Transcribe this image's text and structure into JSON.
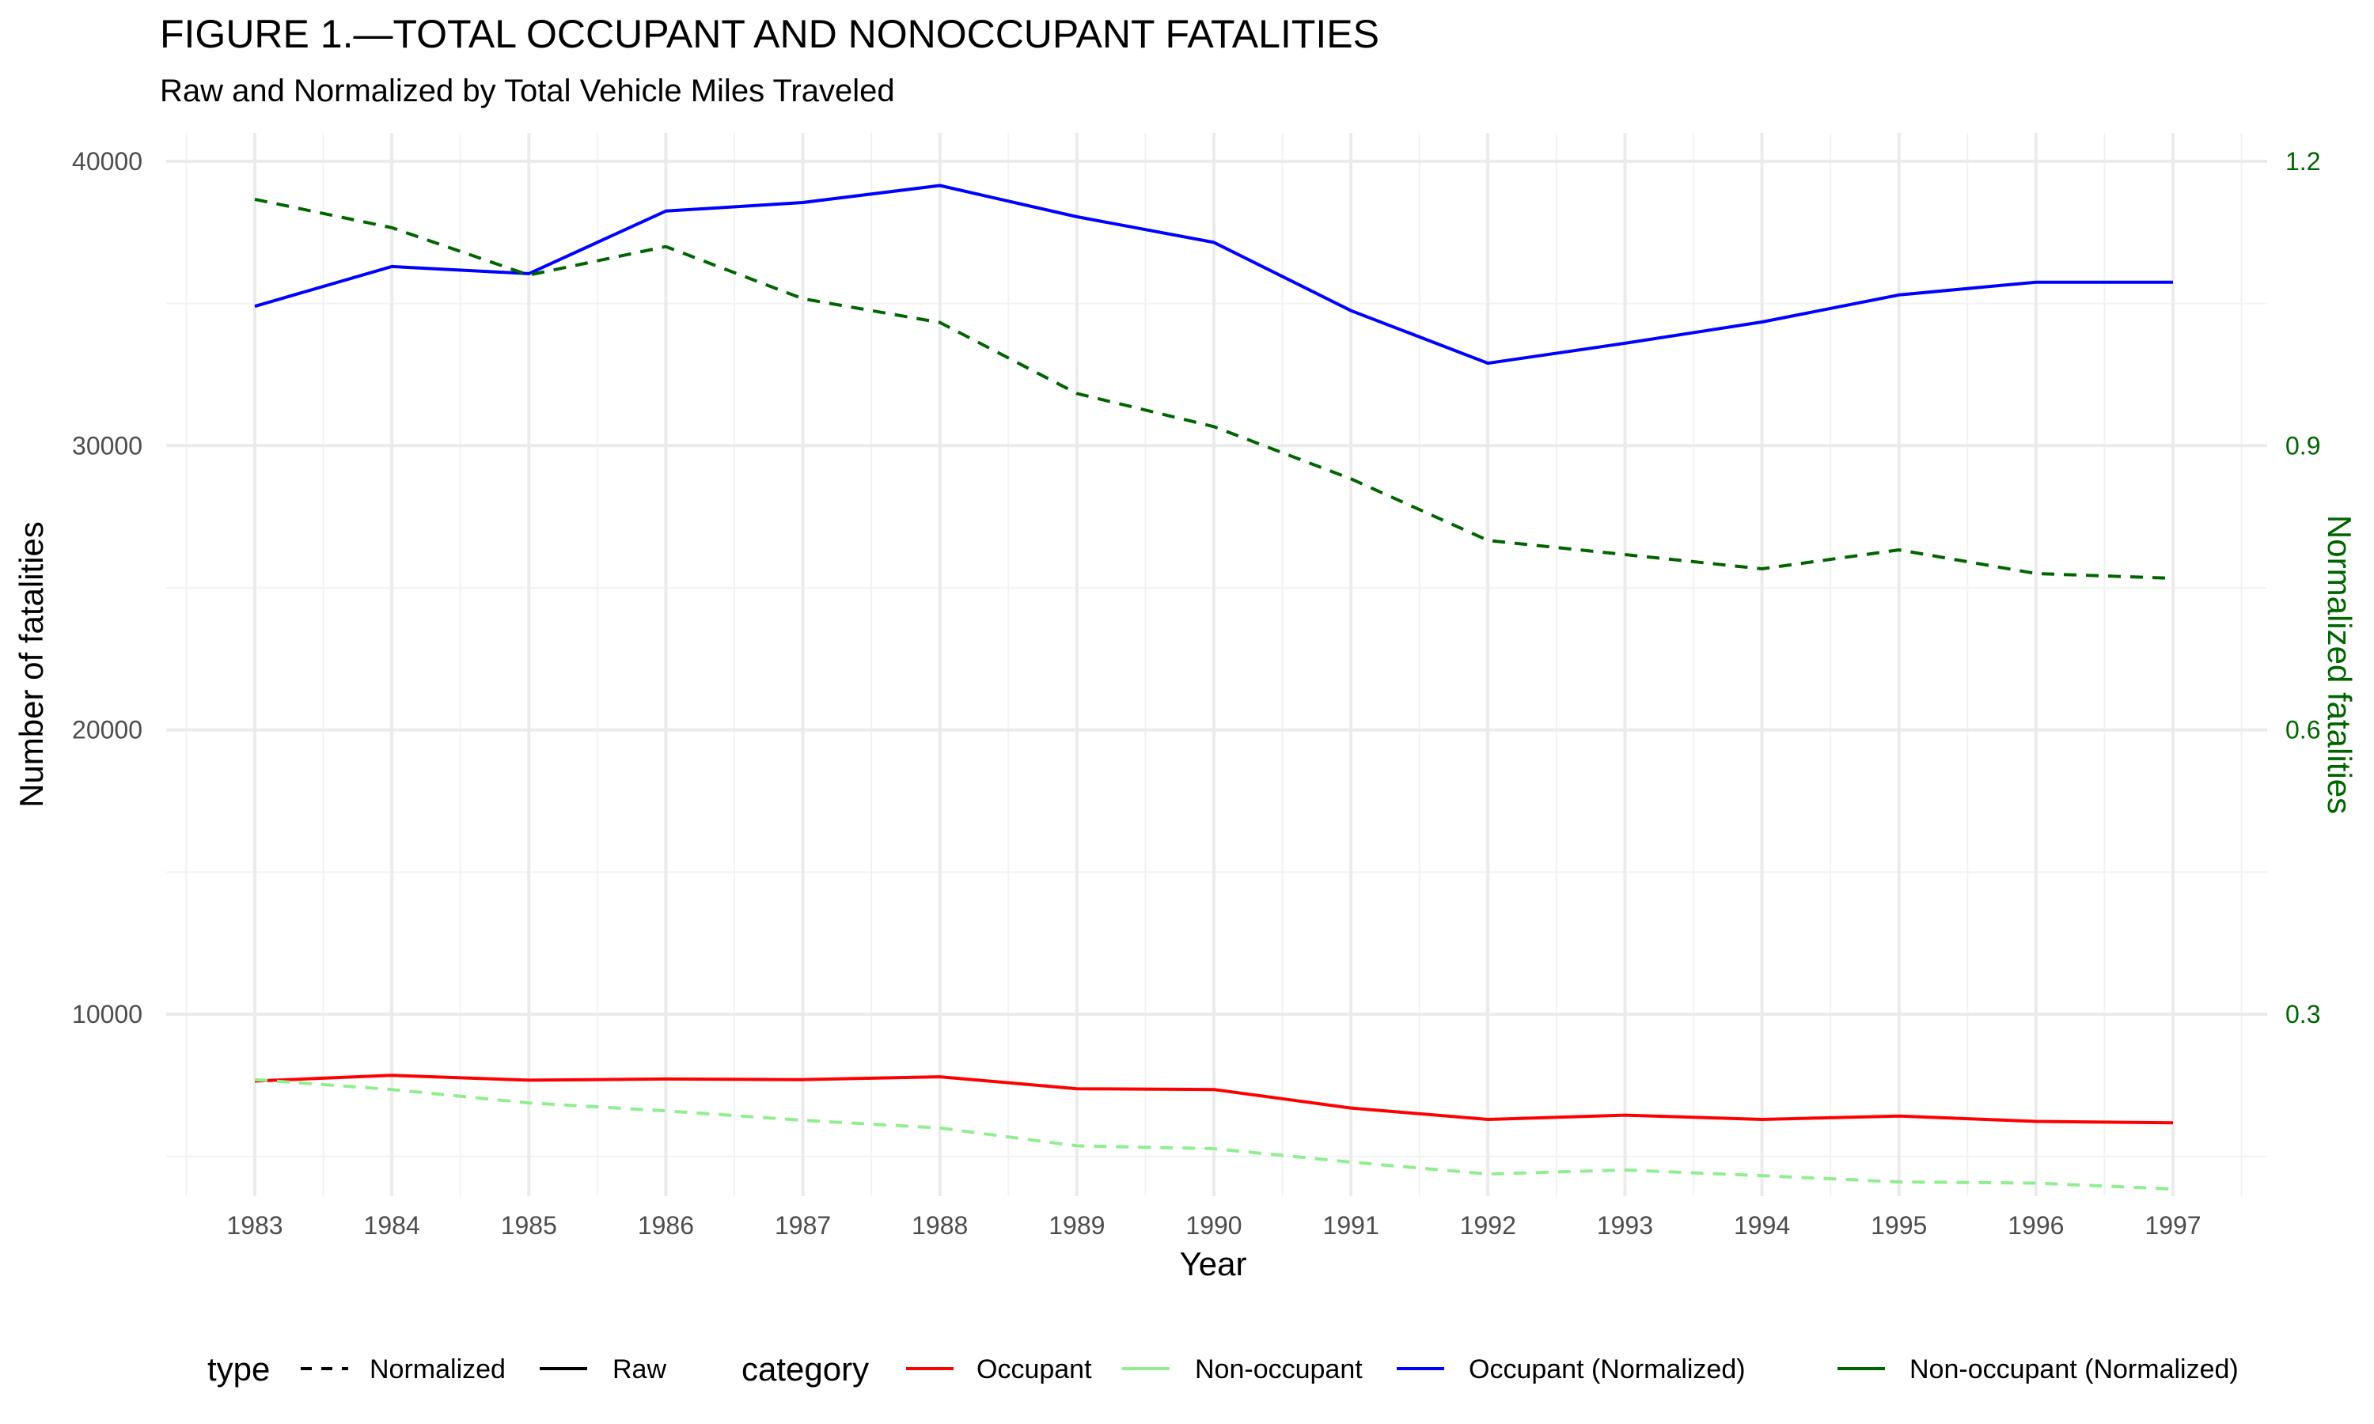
{
  "chart_data": {
    "type": "line",
    "title": "FIGURE 1.—TOTAL OCCUPANT AND NONOCCUPANT FATALITIES",
    "subtitle": "Raw and Normalized by Total Vehicle Miles Traveled",
    "xlabel": "Year",
    "ylabel": "Number of fatalities",
    "y2label": "Normalized fatalities",
    "x": [
      1983,
      1984,
      1985,
      1986,
      1987,
      1988,
      1989,
      1990,
      1991,
      1992,
      1993,
      1994,
      1995,
      1996,
      1997
    ],
    "x_tick_labels": [
      "1983",
      "1984",
      "1985",
      "1986",
      "1987",
      "1988",
      "1989",
      "1990",
      "1991",
      "1992",
      "1993",
      "1994",
      "1995",
      "1996",
      "1997"
    ],
    "ylim": [
      3600,
      41000
    ],
    "y_ticks": [
      10000,
      20000,
      30000,
      40000
    ],
    "y_tick_labels": [
      "10000",
      "20000",
      "30000",
      "40000"
    ],
    "y2lim": [
      0.108,
      1.23
    ],
    "y2_ticks": [
      0.3,
      0.6,
      0.9,
      1.2
    ],
    "y2_tick_labels": [
      "0.3",
      "0.6",
      "0.9",
      "1.2"
    ],
    "grid": true,
    "legend_position": "bottom",
    "legend": {
      "type_title": "type",
      "type_entries": [
        {
          "label": "Normalized",
          "dash": "dashed"
        },
        {
          "label": "Raw",
          "dash": "solid"
        }
      ],
      "category_title": "category",
      "category_entries": [
        {
          "label": "Occupant",
          "color": "#ff0000"
        },
        {
          "label": "Non-occupant",
          "color": "#90ee90"
        },
        {
          "label": "Occupant (Normalized)",
          "color": "#0000ff"
        },
        {
          "label": "Non-occupant (Normalized)",
          "color": "#006400"
        }
      ]
    },
    "series": [
      {
        "name": "Occupant",
        "type": "Raw",
        "axis": "left",
        "color": "#ff0000",
        "dash": "solid",
        "values": [
          7650,
          7850,
          7680,
          7720,
          7700,
          7800,
          7380,
          7350,
          6700,
          6300,
          6450,
          6300,
          6420,
          6230,
          6180
        ]
      },
      {
        "name": "Non-occupant",
        "type": "Normalized",
        "axis": "left",
        "color": "#90ee90",
        "dash": "dashed",
        "values": [
          7700,
          7350,
          6880,
          6600,
          6270,
          6000,
          5370,
          5270,
          4800,
          4380,
          4520,
          4320,
          4100,
          4060,
          3850
        ]
      },
      {
        "name": "Occupant (Normalized)",
        "type": "Raw",
        "axis": "left",
        "color": "#0000ff",
        "dash": "solid",
        "values": [
          34900,
          36300,
          36050,
          38250,
          38550,
          39150,
          38050,
          37150,
          34750,
          32900,
          33600,
          34350,
          35300,
          35750,
          35750
        ]
      },
      {
        "name": "Non-occupant (Normalized)",
        "type": "Normalized",
        "axis": "right",
        "color": "#006400",
        "dash": "dashed",
        "values": [
          1.16,
          1.13,
          1.08,
          1.11,
          1.055,
          1.03,
          0.955,
          0.92,
          0.865,
          0.8,
          0.785,
          0.77,
          0.79,
          0.765,
          0.76
        ]
      }
    ]
  }
}
